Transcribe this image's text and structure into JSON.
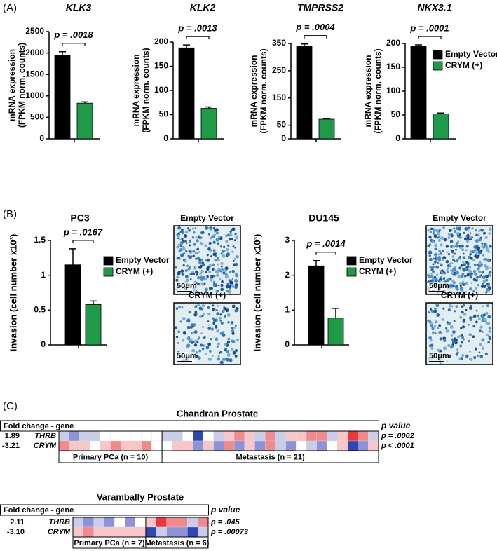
{
  "panel_labels": [
    "(A)",
    "(B)",
    "(C)"
  ],
  "chart_data": [
    {
      "type": "bar",
      "title": "KLK3",
      "y_label": [
        "mRNA expression",
        "(FPKM norm. counts)"
      ],
      "ylim": [
        0,
        2500
      ],
      "yticks": [
        0,
        500,
        1000,
        1500,
        2000,
        2500
      ],
      "series": [
        {
          "color": "#000000",
          "values": [
            1950
          ],
          "errors": [
            80
          ]
        },
        {
          "color": "#1e9a48",
          "values": [
            830
          ],
          "errors": [
            30
          ]
        }
      ],
      "annotation": "p = .0018"
    },
    {
      "type": "bar",
      "title": "KLK2",
      "y_label": [
        "mRNA expression",
        "(FPKM norm. counts)"
      ],
      "ylim": [
        0,
        200
      ],
      "yticks": [
        0,
        50,
        100,
        150,
        200
      ],
      "series": [
        {
          "color": "#000000",
          "values": [
            188
          ],
          "errors": [
            6
          ]
        },
        {
          "color": "#1e9a48",
          "values": [
            63
          ],
          "errors": [
            3
          ]
        }
      ],
      "annotation": "p = .0013"
    },
    {
      "type": "bar",
      "title": "TMPRSS2",
      "y_label": [
        "mRNA expression",
        "(FPKM norm. counts)"
      ],
      "ylim": [
        0,
        350
      ],
      "yticks": [
        0,
        50,
        150,
        250,
        350
      ],
      "series": [
        {
          "color": "#000000",
          "values": [
            340
          ],
          "errors": [
            8
          ]
        },
        {
          "color": "#1e9a48",
          "values": [
            72
          ],
          "errors": [
            2
          ]
        }
      ],
      "annotation": "p = .0004"
    },
    {
      "type": "bar",
      "title": "NKX3.1",
      "y_label": [
        "mRNA expression",
        "(FPKM norm. counts)"
      ],
      "ylim": [
        0,
        200
      ],
      "yticks": [
        0,
        50,
        100,
        150,
        200
      ],
      "series": [
        {
          "name": "Empty Vector",
          "color": "#000000",
          "values": [
            195
          ],
          "errors": [
            2
          ]
        },
        {
          "name": "CRYM (+)",
          "color": "#1e9a48",
          "values": [
            52
          ],
          "errors": [
            2
          ]
        }
      ],
      "annotation": "p = .0001",
      "legend": "right"
    },
    {
      "type": "bar",
      "title": "PC3",
      "y_label": [
        "Invasion (cell number x10³)"
      ],
      "ylim": [
        0,
        1.5
      ],
      "yticks": [
        0,
        0.5,
        1,
        1.5
      ],
      "series": [
        {
          "name": "Empty Vector",
          "color": "#000000",
          "values": [
            1.15
          ],
          "errors": [
            0.23
          ]
        },
        {
          "name": "CRYM (+)",
          "color": "#1e9a48",
          "values": [
            0.58
          ],
          "errors": [
            0.05
          ]
        }
      ],
      "annotation": "p = .0167",
      "legend": "right",
      "images": [
        {
          "label": "Empty Vector",
          "scale": "50μm"
        },
        {
          "label": "CRYM (+)",
          "scale": "50μm"
        }
      ]
    },
    {
      "type": "bar",
      "title": "DU145",
      "y_label": [
        "Invasion (cell number x10³)"
      ],
      "ylim": [
        0,
        3
      ],
      "yticks": [
        0,
        1,
        2,
        3
      ],
      "series": [
        {
          "name": "Empty Vector",
          "color": "#000000",
          "values": [
            2.27
          ],
          "errors": [
            0.15
          ]
        },
        {
          "name": "CRYM (+)",
          "color": "#1e9a48",
          "values": [
            0.77
          ],
          "errors": [
            0.28
          ]
        }
      ],
      "annotation": "p = .0014",
      "legend": "right",
      "images": [
        {
          "label": "Empty Vector",
          "scale": "50μm"
        },
        {
          "label": "CRYM (+)",
          "scale": "50μm"
        }
      ]
    },
    {
      "type": "heatmap",
      "title": "Chandran Prostate",
      "header": "Fold change - gene",
      "p_header": "p value",
      "rows": [
        {
          "fold": "1.89",
          "gene": "THRB",
          "p": "p = .0002",
          "colors": [
            "#c9cdea",
            "#8d93d6",
            "#c9cdea",
            "#c9cdea",
            "#ffffff",
            "#ffffff",
            "#ffffff",
            "#ffffff",
            "#ffffff",
            "#ffffff",
            "#c9cdea",
            "#c9cdea",
            "#ffffff",
            "#2f47b0",
            "#ffffff",
            "#c9cdea",
            "#f7c6c8",
            "#f08a8e",
            "#f7c6c8",
            "#c9cdea",
            "#f08a8e",
            "#c9cdea",
            "#f7c6c8",
            "#f7c6c8",
            "#f08a8e",
            "#f08a8e",
            "#c9cdea",
            "#f7c6c8",
            "#e8383d",
            "#f08a8e",
            "#c9cdea"
          ]
        },
        {
          "fold": "-3.21",
          "gene": "CRYM",
          "p": "p < .0001",
          "colors": [
            "#f08a8e",
            "#f7c6c8",
            "#f7c6c8",
            "#ffffff",
            "#f7c6c8",
            "#f08a8e",
            "#f7c6c8",
            "#f7c6c8",
            "#f08a8e",
            "#ffffff",
            "#ffffff",
            "#f7c6c8",
            "#f7c6c8",
            "#8d93d6",
            "#f7c6c8",
            "#8d93d6",
            "#f08a8e",
            "#8d93d6",
            "#f7c6c8",
            "#8d93d6",
            "#f08a8e",
            "#c9cdea",
            "#8d93d6",
            "#ffffff",
            "#c9cdea",
            "#8d93d6",
            "#ffffff",
            "#f7c6c8",
            "#2f47b0",
            "#8d93d6",
            "#f7c6c8"
          ]
        }
      ],
      "groups": [
        {
          "label": "Primary PCa (n = 10)",
          "count": 10
        },
        {
          "label": "Metastasis (n = 21)",
          "count": 21
        }
      ]
    },
    {
      "type": "heatmap",
      "title": "Varambally Prostate",
      "header": "Fold change - gene",
      "p_header": "p value",
      "rows": [
        {
          "fold": "2.11",
          "gene": "THRB",
          "p": "p = .045",
          "colors": [
            "#c9cdea",
            "#8d93d6",
            "#c9cdea",
            "#8d93d6",
            "#ffffff",
            "#8d93d6",
            "#ffffff",
            "#f7c6c8",
            "#e8383d",
            "#f08a8e",
            "#f08a8e",
            "#c9cdea",
            "#f08a8e"
          ]
        },
        {
          "fold": "-3.10",
          "gene": "CRYM",
          "p": "p = .00073",
          "colors": [
            "#f7c6c8",
            "#f08a8e",
            "#f7c6c8",
            "#f7c6c8",
            "#f7c6c8",
            "#f7c6c8",
            "#f7c6c8",
            "#2f47b0",
            "#c9cdea",
            "#8d93d6",
            "#8d93d6",
            "#2f47b0",
            "#c9cdea"
          ]
        }
      ],
      "groups": [
        {
          "label": "Primary PCa (n = 7)",
          "count": 7
        },
        {
          "label": "Metastasis (n = 6)",
          "count": 6
        }
      ]
    }
  ]
}
